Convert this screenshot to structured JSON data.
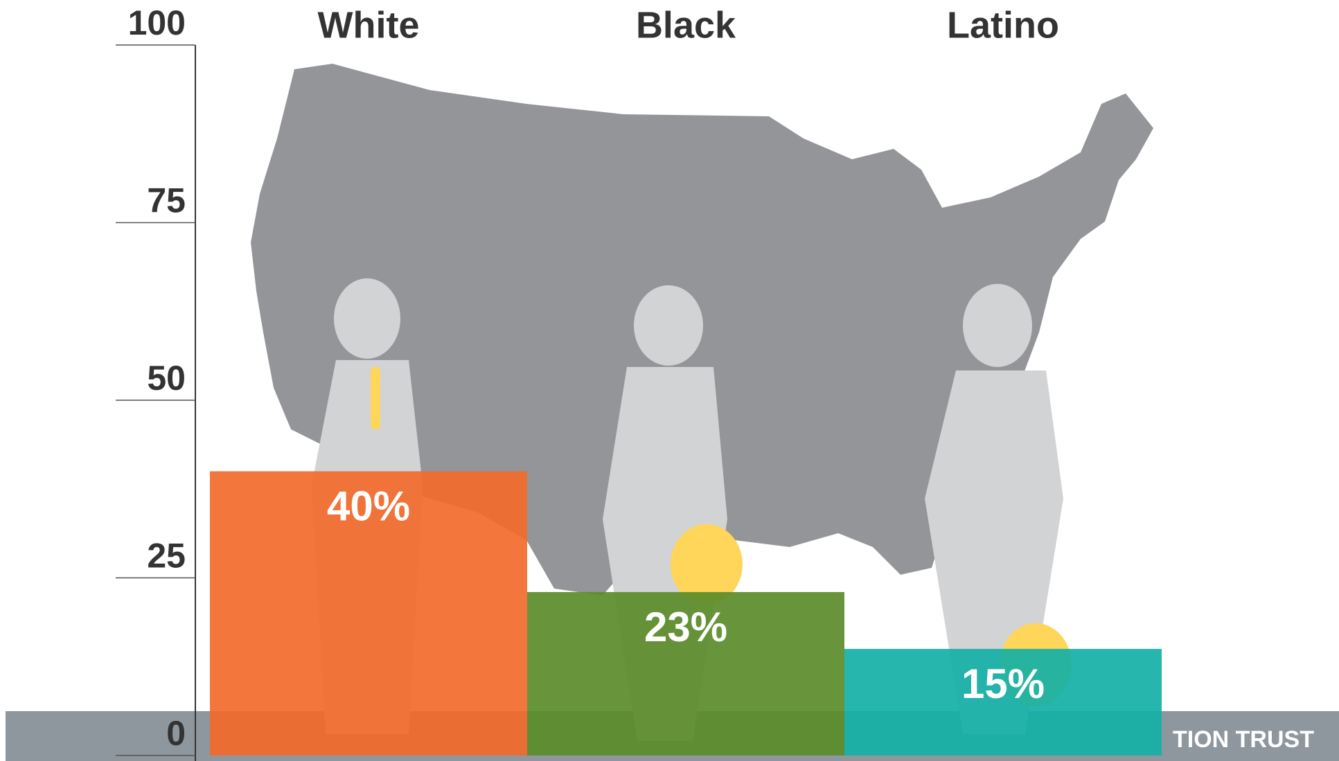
{
  "chart_data": {
    "type": "bar",
    "categories": [
      "White",
      "Black",
      "Latino"
    ],
    "values": [
      40,
      23,
      15
    ],
    "value_labels": [
      "40%",
      "23%",
      "15%"
    ],
    "colors": [
      "#f26a2b",
      "#5b8c2a",
      "#14b0a6"
    ],
    "ylim": [
      0,
      100
    ],
    "yticks": [
      0,
      25,
      50,
      75,
      100
    ],
    "footer": "TION TRUST"
  }
}
